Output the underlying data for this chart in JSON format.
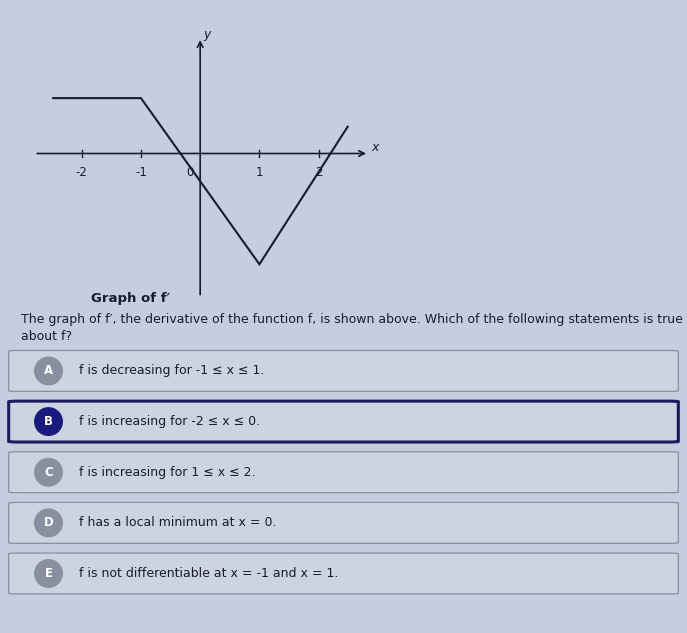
{
  "graph_points": [
    [
      -2.5,
      1
    ],
    [
      -1,
      1
    ],
    [
      1,
      -2
    ],
    [
      2.5,
      0.5
    ]
  ],
  "x_ticks": [
    -2,
    -1,
    1,
    2
  ],
  "xlim": [
    -2.8,
    3.0
  ],
  "ylim": [
    -2.6,
    2.2
  ],
  "graph_label": "Graph of f′",
  "question_text_line1": "The graph of f′, the derivative of the function f, is shown above. Which of the following statements is true",
  "question_text_line2": "about f?",
  "bg_color": "#c5cede",
  "line_color": "#1a1a2e",
  "axis_color": "#1a1a2e",
  "choices": [
    {
      "letter": "A",
      "text": "f is decreasing for -1 ≤ x ≤ 1.",
      "selected": false
    },
    {
      "letter": "B",
      "text": "f is increasing for -2 ≤ x ≤ 0.",
      "selected": true
    },
    {
      "letter": "C",
      "text": "f is increasing for 1 ≤ x ≤ 2.",
      "selected": false
    },
    {
      "letter": "D",
      "text": "f has a local minimum at x = 0.",
      "selected": false
    },
    {
      "letter": "E",
      "text": "f is not differentiable at x = -1 and x = 1.",
      "selected": false
    }
  ],
  "text_color": "#1a1a2e",
  "choice_bg": "#ccd4e2",
  "choice_selected_border": "#1a1a5e",
  "choice_border": "#8890a0",
  "circle_selected_color": "#1a1a7e",
  "circle_unselected_color": "#8890a0"
}
